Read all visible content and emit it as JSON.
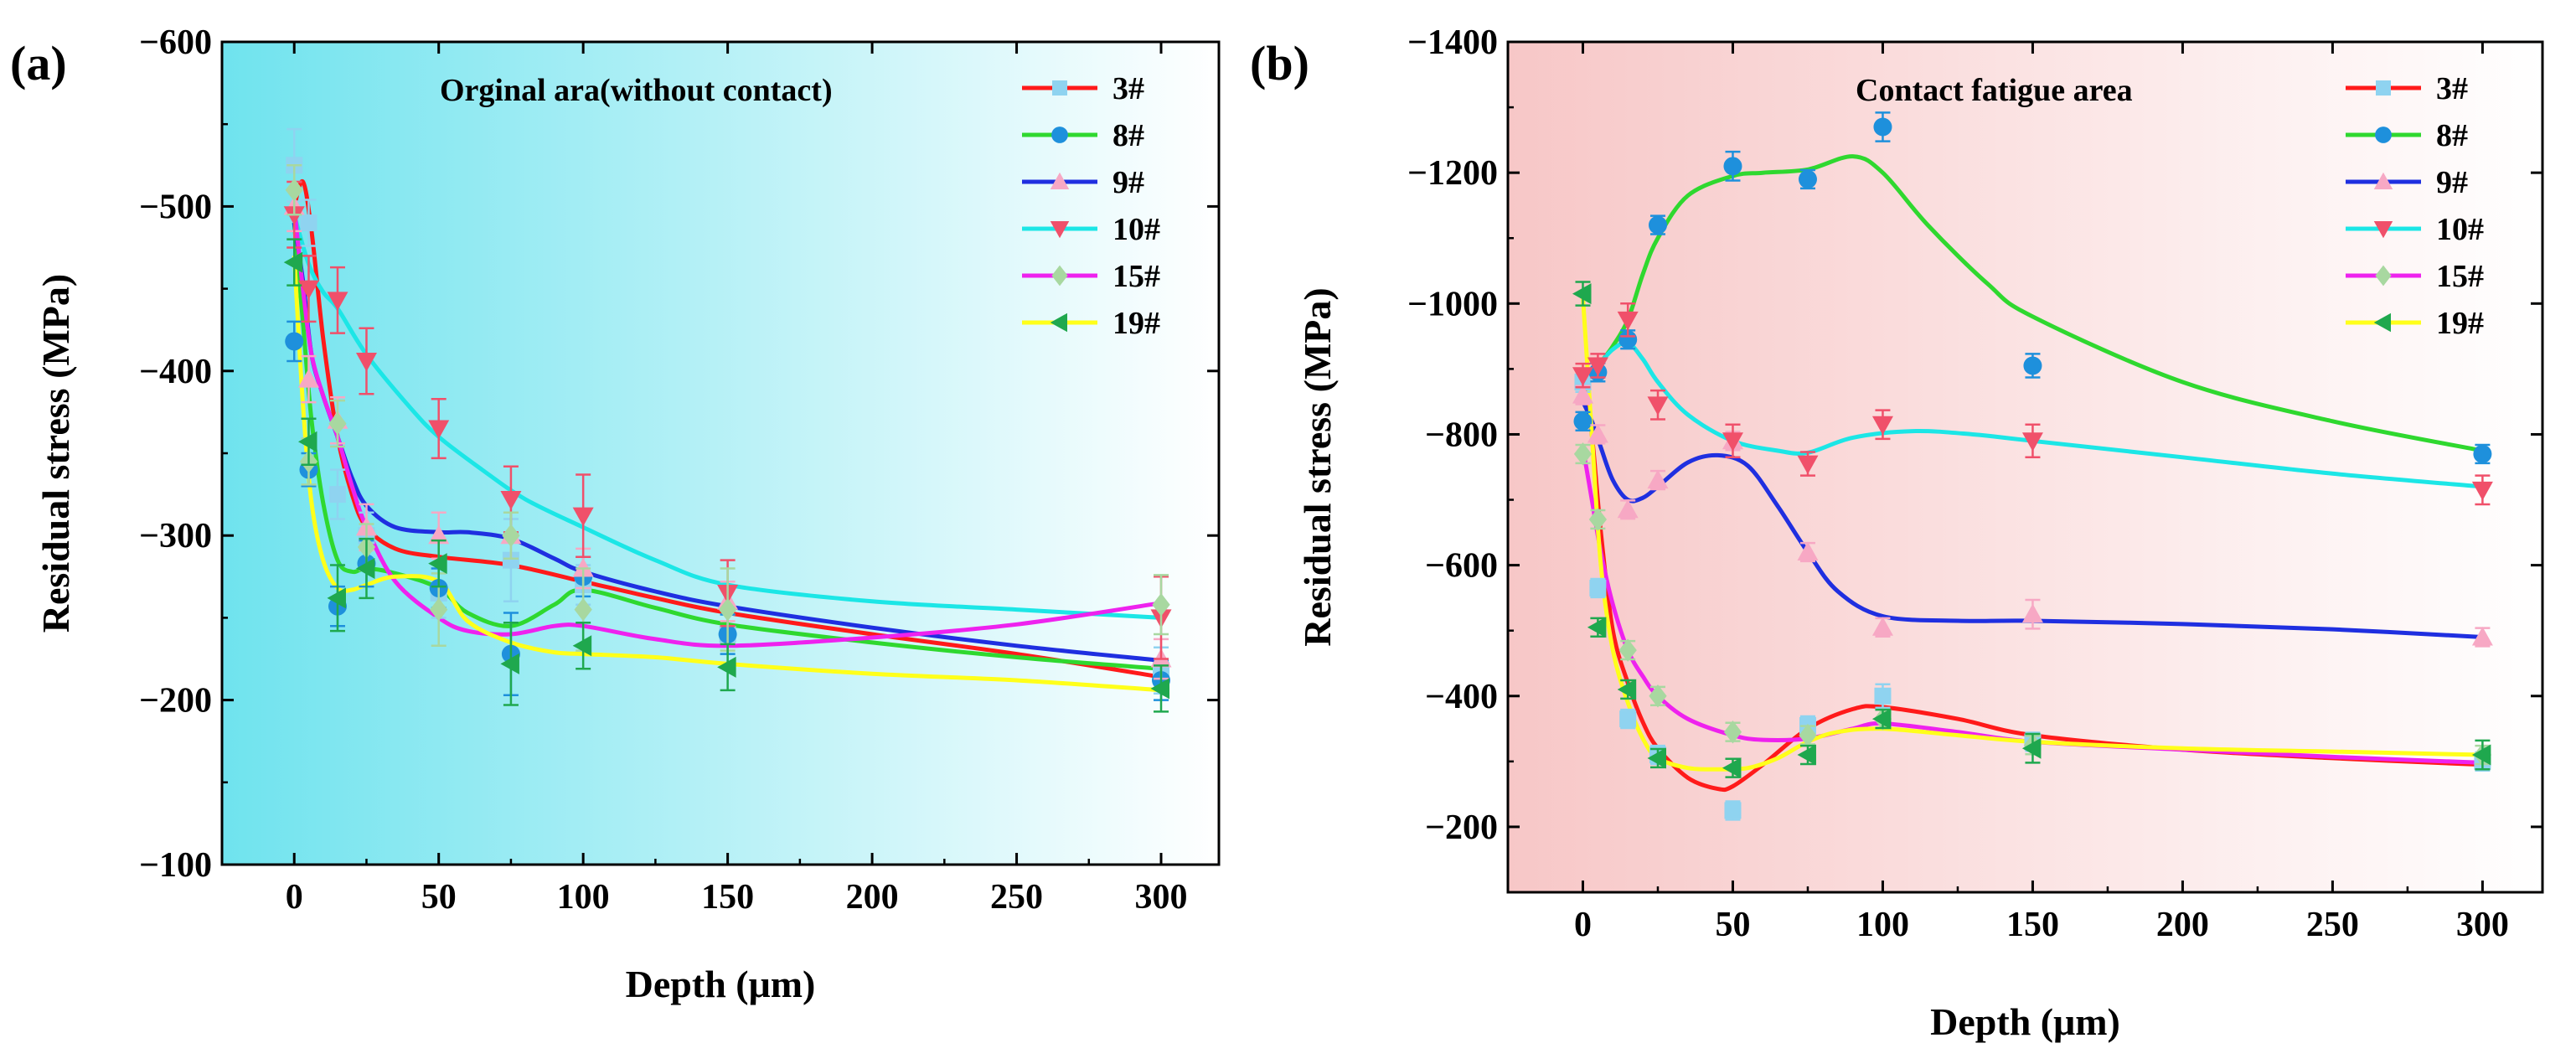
{
  "chart_data": [
    {
      "type": "line",
      "panel_label": "(a)",
      "annotation": "Orginal ara(without contact)",
      "xlabel": "Depth (μm)",
      "ylabel": "Residual stress (MPa)",
      "xlim": [
        -25,
        320
      ],
      "ylim": [
        -600,
        -100
      ],
      "xticks": [
        0,
        50,
        100,
        150,
        200,
        250,
        300
      ],
      "xtick_labels": [
        "0",
        "50",
        "100",
        "150",
        "200",
        "250",
        "300"
      ],
      "yticks": [
        -600,
        -500,
        -400,
        -300,
        -200,
        -100
      ],
      "ytick_labels": [
        "−600",
        "−500",
        "−400",
        "−300",
        "−200",
        "−100"
      ],
      "background": {
        "from": "#6FE3EE",
        "to": "#FFFFFF"
      },
      "legend_position": "top-right",
      "series": [
        {
          "name": "3#",
          "color": "#FF1A1A",
          "marker_color": "#8FD3F0",
          "marker": "square",
          "x": [
            0,
            5,
            15,
            25,
            50,
            75,
            100,
            150,
            300
          ],
          "y": [
            -525,
            -490,
            -325,
            -300,
            -265,
            -285,
            -270,
            -240,
            -218
          ],
          "err": [
            22,
            14,
            15,
            14,
            15,
            25,
            12,
            12,
            14
          ],
          "curve_x": [
            0,
            3,
            6,
            10,
            15,
            20,
            25,
            35,
            50,
            75,
            100,
            125,
            150,
            200,
            250,
            300
          ],
          "curve_y": [
            -500,
            -515,
            -485,
            -420,
            -360,
            -325,
            -305,
            -292,
            -287,
            -282,
            -272,
            -262,
            -253,
            -240,
            -228,
            -214
          ]
        },
        {
          "name": "8#",
          "color": "#2FD82F",
          "marker_color": "#1E90DC",
          "marker": "circle",
          "x": [
            0,
            5,
            15,
            25,
            50,
            75,
            100,
            150,
            300
          ],
          "y": [
            -418,
            -340,
            -257,
            -283,
            -268,
            -228,
            -275,
            -240,
            -212
          ],
          "err": [
            12,
            10,
            12,
            14,
            12,
            25,
            12,
            12,
            12
          ],
          "curve_x": [
            0,
            3,
            6,
            10,
            15,
            20,
            25,
            35,
            50,
            60,
            75,
            90,
            100,
            125,
            150,
            200,
            250,
            300
          ],
          "curve_y": [
            -490,
            -430,
            -370,
            -320,
            -285,
            -278,
            -280,
            -277,
            -268,
            -253,
            -245,
            -258,
            -267,
            -256,
            -246,
            -235,
            -226,
            -219
          ]
        },
        {
          "name": "9#",
          "color": "#1F2FE0",
          "marker_color": "#F7A8C4",
          "marker": "triangle-up",
          "x": [
            0,
            5,
            15,
            25,
            50,
            75,
            100,
            150,
            300
          ],
          "y": [
            -500,
            -395,
            -370,
            -305,
            -300,
            -300,
            -280,
            -260,
            -225
          ],
          "err": [
            15,
            14,
            14,
            14,
            14,
            14,
            12,
            12,
            12
          ],
          "curve_x": [
            0,
            3,
            6,
            10,
            15,
            20,
            25,
            35,
            50,
            60,
            75,
            90,
            100,
            125,
            150,
            200,
            250,
            300
          ],
          "curve_y": [
            -490,
            -455,
            -410,
            -385,
            -360,
            -335,
            -318,
            -305,
            -302,
            -302,
            -298,
            -286,
            -278,
            -266,
            -257,
            -244,
            -233,
            -224
          ]
        },
        {
          "name": "10#",
          "color": "#1CE6E6",
          "marker_color": "#F0506A",
          "marker": "triangle-down",
          "x": [
            0,
            5,
            15,
            25,
            50,
            75,
            100,
            150,
            300
          ],
          "y": [
            -495,
            -450,
            -443,
            -406,
            -365,
            -322,
            -312,
            -265,
            -250
          ],
          "err": [
            20,
            20,
            20,
            20,
            18,
            20,
            25,
            20,
            25
          ],
          "curve_x": [
            0,
            5,
            10,
            15,
            25,
            40,
            50,
            65,
            80,
            100,
            125,
            150,
            200,
            250,
            300
          ],
          "curve_y": [
            -495,
            -465,
            -448,
            -438,
            -410,
            -378,
            -360,
            -340,
            -322,
            -305,
            -285,
            -270,
            -260,
            -255,
            -250
          ]
        },
        {
          "name": "15#",
          "color": "#EE22EE",
          "marker_color": "#A8D8A0",
          "marker": "diamond",
          "x": [
            0,
            5,
            15,
            25,
            50,
            75,
            100,
            150,
            300
          ],
          "y": [
            -510,
            -345,
            -368,
            -293,
            -255,
            -300,
            -255,
            -255,
            -258
          ],
          "err": [
            15,
            14,
            14,
            14,
            22,
            14,
            25,
            25,
            18
          ],
          "curve_x": [
            0,
            3,
            6,
            10,
            15,
            20,
            25,
            35,
            50,
            60,
            75,
            90,
            100,
            125,
            150,
            200,
            250,
            300
          ],
          "curve_y": [
            -500,
            -450,
            -410,
            -385,
            -360,
            -330,
            -305,
            -272,
            -250,
            -242,
            -240,
            -245,
            -245,
            -237,
            -233,
            -238,
            -246,
            -259
          ]
        },
        {
          "name": "19#",
          "color": "#FFFF1A",
          "marker_color": "#1FA84E",
          "marker": "triangle-left",
          "x": [
            0,
            5,
            15,
            25,
            50,
            75,
            100,
            150,
            300
          ],
          "y": [
            -466,
            -357,
            -262,
            -280,
            -283,
            -222,
            -233,
            -220,
            -207
          ],
          "err": [
            14,
            14,
            20,
            18,
            14,
            25,
            14,
            14,
            14
          ],
          "curve_x": [
            0,
            3,
            6,
            10,
            15,
            20,
            25,
            35,
            50,
            60,
            75,
            90,
            100,
            125,
            150,
            200,
            250,
            300
          ],
          "curve_y": [
            -470,
            -380,
            -320,
            -285,
            -268,
            -267,
            -270,
            -275,
            -272,
            -248,
            -235,
            -229,
            -228,
            -226,
            -222,
            -216,
            -212,
            -206
          ]
        }
      ]
    },
    {
      "type": "line",
      "panel_label": "(b)",
      "annotation": "Contact fatigue area",
      "xlabel": "Depth (μm)",
      "ylabel": "Residual stress (MPa)",
      "xlim": [
        -25,
        320
      ],
      "ylim": [
        -1400,
        -100
      ],
      "xticks": [
        0,
        50,
        100,
        150,
        200,
        250,
        300
      ],
      "xtick_labels": [
        "0",
        "50",
        "100",
        "150",
        "200",
        "250",
        "300"
      ],
      "yticks": [
        -1400,
        -1200,
        -1000,
        -800,
        -600,
        -400,
        -200
      ],
      "ytick_labels": [
        "−1400",
        "−1200",
        "−1000",
        "−800",
        "−600",
        "−400",
        "−200"
      ],
      "background": {
        "from": "#F7C7C7",
        "to": "#FFFFFF"
      },
      "legend_position": "top-right",
      "series": [
        {
          "name": "3#",
          "color": "#FF1A1A",
          "marker_color": "#8FD3F0",
          "marker": "square",
          "x": [
            0,
            5,
            15,
            25,
            50,
            75,
            100,
            150,
            300
          ],
          "y": [
            -880,
            -565,
            -365,
            -310,
            -225,
            -355,
            -400,
            -330,
            -300
          ],
          "err": [
            15,
            14,
            14,
            14,
            14,
            14,
            18,
            14,
            14
          ],
          "curve_x": [
            0,
            3,
            6,
            10,
            15,
            20,
            25,
            35,
            45,
            50,
            60,
            75,
            90,
            100,
            125,
            150,
            200,
            250,
            300
          ],
          "curve_y": [
            -900,
            -800,
            -650,
            -500,
            -420,
            -360,
            -320,
            -275,
            -258,
            -262,
            -295,
            -350,
            -380,
            -383,
            -365,
            -340,
            -318,
            -305,
            -295
          ]
        },
        {
          "name": "8#",
          "color": "#2FD82F",
          "marker_color": "#1E90DC",
          "marker": "circle",
          "x": [
            0,
            5,
            15,
            25,
            50,
            75,
            100,
            150,
            300
          ],
          "y": [
            -820,
            -895,
            -945,
            -1120,
            -1210,
            -1190,
            -1270,
            -905,
            -770
          ],
          "err": [
            14,
            14,
            14,
            14,
            22,
            14,
            22,
            18,
            14
          ],
          "curve_x": [
            0,
            3,
            6,
            10,
            15,
            20,
            25,
            35,
            50,
            60,
            75,
            90,
            100,
            115,
            135,
            150,
            200,
            250,
            300
          ],
          "curve_y": [
            -885,
            -890,
            -910,
            -935,
            -975,
            -1045,
            -1100,
            -1165,
            -1195,
            -1200,
            -1205,
            -1225,
            -1200,
            -1120,
            -1030,
            -980,
            -880,
            -820,
            -775
          ]
        },
        {
          "name": "9#",
          "color": "#1F2FE0",
          "marker_color": "#F7A8C4",
          "marker": "triangle-up",
          "x": [
            0,
            5,
            15,
            25,
            50,
            75,
            100,
            150,
            300
          ],
          "y": [
            -860,
            -800,
            -685,
            -730,
            -790,
            -620,
            -505,
            -525,
            -490
          ],
          "err": [
            14,
            14,
            14,
            14,
            14,
            14,
            14,
            22,
            14
          ],
          "curve_x": [
            0,
            3,
            6,
            10,
            15,
            20,
            25,
            35,
            45,
            55,
            65,
            75,
            85,
            100,
            125,
            150,
            200,
            250,
            300
          ],
          "curve_y": [
            -850,
            -820,
            -780,
            -730,
            -700,
            -703,
            -720,
            -757,
            -768,
            -752,
            -690,
            -620,
            -560,
            -522,
            -515,
            -515,
            -510,
            -502,
            -490
          ]
        },
        {
          "name": "10#",
          "color": "#1CE6E6",
          "marker_color": "#F0506A",
          "marker": "triangle-down",
          "x": [
            0,
            5,
            15,
            25,
            50,
            75,
            100,
            150,
            300
          ],
          "y": [
            -890,
            -905,
            -975,
            -845,
            -790,
            -755,
            -815,
            -790,
            -715
          ],
          "err": [
            18,
            18,
            25,
            22,
            25,
            18,
            22,
            25,
            22
          ],
          "curve_x": [
            0,
            5,
            10,
            15,
            20,
            25,
            35,
            50,
            65,
            75,
            90,
            110,
            130,
            150,
            200,
            250,
            300
          ],
          "curve_y": [
            -880,
            -905,
            -930,
            -940,
            -915,
            -880,
            -830,
            -790,
            -775,
            -772,
            -795,
            -805,
            -800,
            -790,
            -765,
            -740,
            -720
          ]
        },
        {
          "name": "15#",
          "color": "#EE22EE",
          "marker_color": "#A8D8A0",
          "marker": "diamond",
          "x": [
            0,
            5,
            15,
            25,
            50,
            75,
            100,
            150,
            300
          ],
          "y": [
            -770,
            -670,
            -470,
            -400,
            -345,
            -340,
            -365,
            -325,
            -310
          ],
          "err": [
            14,
            14,
            14,
            14,
            14,
            14,
            14,
            14,
            14
          ],
          "curve_x": [
            0,
            3,
            6,
            10,
            15,
            20,
            25,
            35,
            50,
            60,
            75,
            90,
            100,
            125,
            150,
            200,
            250,
            300
          ],
          "curve_y": [
            -780,
            -700,
            -620,
            -540,
            -470,
            -430,
            -400,
            -365,
            -340,
            -333,
            -335,
            -350,
            -358,
            -345,
            -330,
            -318,
            -307,
            -298
          ]
        },
        {
          "name": "19#",
          "color": "#FFFF1A",
          "marker_color": "#1FA84E",
          "marker": "triangle-left",
          "x": [
            0,
            5,
            15,
            25,
            50,
            75,
            100,
            150,
            300
          ],
          "y": [
            -1015,
            -505,
            -410,
            -305,
            -290,
            -310,
            -365,
            -320,
            -310
          ],
          "err": [
            18,
            14,
            14,
            14,
            14,
            14,
            14,
            22,
            22
          ],
          "curve_x": [
            0,
            3,
            6,
            10,
            15,
            20,
            25,
            35,
            45,
            55,
            65,
            75,
            85,
            100,
            125,
            150,
            200,
            250,
            300
          ],
          "curve_y": [
            -1010,
            -800,
            -600,
            -470,
            -390,
            -335,
            -305,
            -290,
            -288,
            -290,
            -305,
            -330,
            -345,
            -350,
            -340,
            -330,
            -320,
            -315,
            -310
          ]
        }
      ]
    }
  ]
}
